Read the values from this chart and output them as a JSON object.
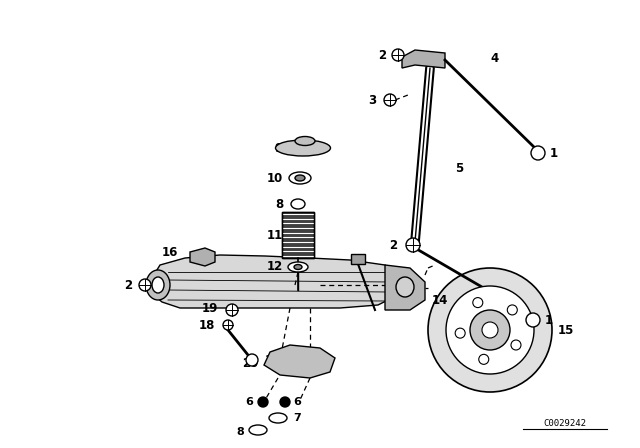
{
  "bg_color": "#ffffff",
  "fig_width": 6.4,
  "fig_height": 4.48,
  "dpi": 100,
  "catalog_number": "C0029242"
}
